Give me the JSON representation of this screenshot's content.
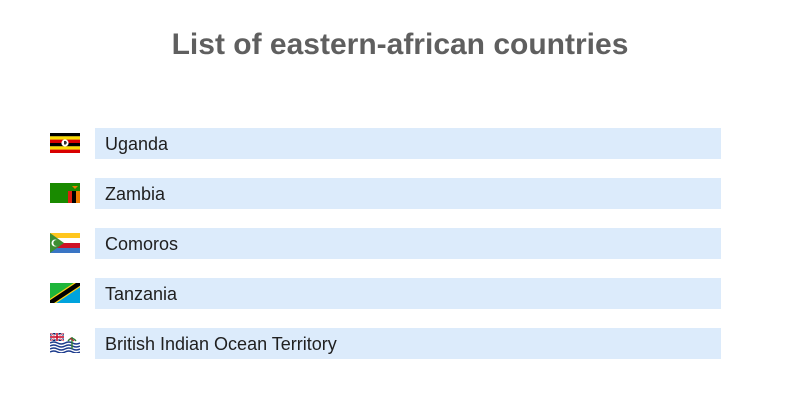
{
  "title": "List of eastern-african countries",
  "countries": [
    {
      "name": "Uganda",
      "flag": "uganda-flag"
    },
    {
      "name": "Zambia",
      "flag": "zambia-flag"
    },
    {
      "name": "Comoros",
      "flag": "comoros-flag"
    },
    {
      "name": "Tanzania",
      "flag": "tanzania-flag"
    },
    {
      "name": "British Indian Ocean Territory",
      "flag": "british-indian-ocean-territory-flag"
    }
  ],
  "colors": {
    "title": "#5f5f5f",
    "bar": "#dcebfb",
    "text": "#202020"
  }
}
